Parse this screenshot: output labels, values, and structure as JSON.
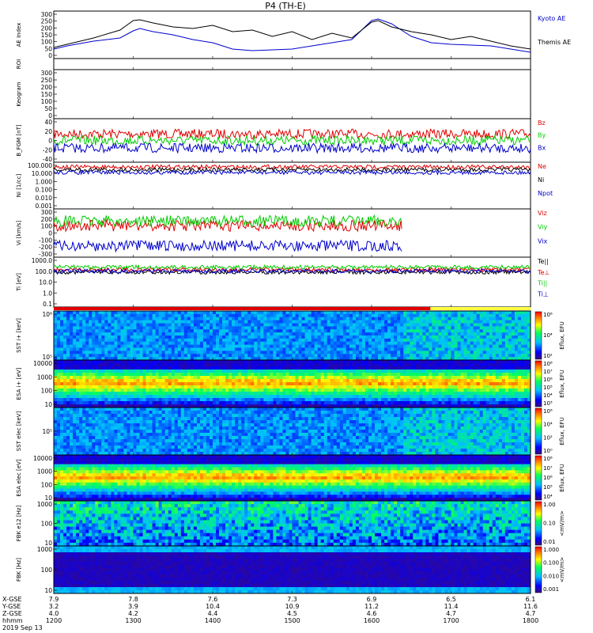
{
  "header": {
    "title": "P4 (TH-E)"
  },
  "chart_data": {
    "type": "line",
    "x_axis": {
      "rows": [
        {
          "label": "X-GSE",
          "values": [
            "7.9",
            "7.8",
            "7.6",
            "7.3",
            "6.9",
            "6.5",
            "6.1"
          ]
        },
        {
          "label": "Y-GSE",
          "values": [
            "3.2",
            "3.9",
            "10.4",
            "10.9",
            "11.2",
            "11.4",
            "11.6"
          ]
        },
        {
          "label": "Z-GSE",
          "values": [
            "4.0",
            "4.2",
            "4.4",
            "4.5",
            "4.6",
            "4.7",
            "4.7"
          ]
        },
        {
          "label": "hhmm",
          "values": [
            "1200",
            "1300",
            "1400",
            "1500",
            "1600",
            "1700",
            "1800"
          ]
        }
      ],
      "date": "2019 Sep 13",
      "time_range": [
        1200,
        1800
      ]
    },
    "panels": [
      {
        "id": "ae",
        "ylabel": "AE Index",
        "ylim": [
          0,
          300
        ],
        "ticks": [
          "300",
          "250",
          "200",
          "150",
          "100",
          "50",
          "0"
        ],
        "series": [
          {
            "name": "Kyoto AE",
            "color": "#0000cc",
            "x": [
              1200,
              1210,
              1230,
              1250,
              1300,
              1305,
              1315,
              1330,
              1345,
              1400,
              1415,
              1430,
              1445,
              1500,
              1515,
              1530,
              1545,
              1600,
              1605,
              1615,
              1630,
              1645,
              1700,
              1715,
              1730,
              1745,
              1800
            ],
            "y": [
              60,
              80,
              110,
              130,
              175,
              190,
              170,
              150,
              120,
              100,
              60,
              50,
              55,
              60,
              80,
              100,
              120,
              240,
              250,
              220,
              140,
              100,
              90,
              85,
              80,
              60,
              40
            ]
          },
          {
            "name": "Themis AE",
            "color": "#000000",
            "x": [
              1200,
              1210,
              1230,
              1250,
              1300,
              1305,
              1315,
              1330,
              1345,
              1400,
              1415,
              1430,
              1445,
              1500,
              1515,
              1530,
              1545,
              1600,
              1605,
              1615,
              1630,
              1645,
              1700,
              1715,
              1730,
              1745,
              1800
            ],
            "y": [
              70,
              90,
              130,
              180,
              240,
              245,
              225,
              200,
              190,
              210,
              170,
              180,
              140,
              170,
              120,
              160,
              130,
              230,
              240,
              200,
              170,
              150,
              120,
              140,
              110,
              80,
              60
            ]
          }
        ]
      },
      {
        "id": "roi",
        "ylabel": "ROI"
      },
      {
        "id": "keogram",
        "ylabel": "Keogram",
        "ylim": [
          0,
          300
        ],
        "ticks": [
          "300",
          "250",
          "200",
          "150",
          "100",
          "50",
          "0"
        ]
      },
      {
        "id": "bfgm",
        "ylabel": "B_FGM [nT]",
        "ylim": [
          -40,
          40
        ],
        "ticks": [
          "40",
          "20",
          "0",
          "-20",
          "-40"
        ],
        "series": [
          {
            "name": "Bz",
            "color": "#e00000",
            "level": 12
          },
          {
            "name": "By",
            "color": "#00cc00",
            "level": 0
          },
          {
            "name": "Bx",
            "color": "#0000cc",
            "level": -14
          }
        ]
      },
      {
        "id": "ni",
        "ylabel": "Ni [1/cc]",
        "ticks": [
          "100.000",
          "10.000",
          "1.000",
          "0.100",
          "0.010",
          "0.001"
        ],
        "series": [
          {
            "name": "Ne",
            "color": "#e00000"
          },
          {
            "name": "Ni",
            "color": "#000000"
          },
          {
            "name": "Npot",
            "color": "#0000cc"
          }
        ]
      },
      {
        "id": "vi",
        "ylabel": "Vi [km/s]",
        "ylim": [
          -300,
          300
        ],
        "ticks": [
          "300",
          "200",
          "100",
          "0",
          "-100",
          "-200",
          "-300"
        ],
        "series": [
          {
            "name": "Viz",
            "color": "#e00000",
            "level": 90
          },
          {
            "name": "Viy",
            "color": "#00cc00",
            "level": 150
          },
          {
            "name": "Vix",
            "color": "#0000cc",
            "level": -160
          }
        ]
      },
      {
        "id": "ti",
        "ylabel": "Ti [eV]",
        "ticks": [
          "1000.0",
          "100.0",
          "10.0",
          "1.0",
          "0.1"
        ],
        "series": [
          {
            "name": "Te||",
            "color": "#000000"
          },
          {
            "name": "Te⊥",
            "color": "#e00000"
          },
          {
            "name": "Ti||",
            "color": "#00cc00"
          },
          {
            "name": "Ti⊥",
            "color": "#0000cc"
          }
        ]
      },
      {
        "id": "sst_i",
        "ylabel": "SST i+ [keV]",
        "ticks": [
          "10⁶",
          "10⁵"
        ],
        "colorbar": {
          "label": "Eflux, EFU",
          "ticks": [
            "10⁶",
            "10⁴",
            "10²"
          ]
        }
      },
      {
        "id": "esa_i",
        "ylabel": "ESA i+ [eV]",
        "ticks": [
          "10000",
          "1000",
          "100",
          "10"
        ],
        "colorbar": {
          "label": "Eflux, EFU",
          "ticks": [
            "10⁸",
            "10⁷",
            "10⁶",
            "10⁵",
            "10⁴",
            "10³"
          ]
        }
      },
      {
        "id": "sst_e",
        "ylabel": "SST elec [keV]",
        "ticks": [
          "10⁵"
        ],
        "colorbar": {
          "label": "Eflux, EFU",
          "ticks": [
            "10⁶",
            "10⁴",
            "10²",
            "10⁰"
          ]
        }
      },
      {
        "id": "esa_e",
        "ylabel": "ESA elec [eV]",
        "ticks": [
          "10000",
          "1000",
          "100",
          "10"
        ],
        "colorbar": {
          "label": "Eflux, EFU",
          "ticks": [
            "10⁸",
            "10⁷",
            "10⁶",
            "10⁵",
            "10⁴"
          ]
        }
      },
      {
        "id": "fbk_e12",
        "ylabel": "FBK e12 [Hz]",
        "ticks": [
          "1000",
          "100",
          "10"
        ],
        "colorbar": {
          "label": "<mV/m>",
          "ticks": [
            "1.00",
            "0.10",
            "0.01"
          ]
        }
      },
      {
        "id": "fbk_b",
        "ylabel": "FBK [Hz]",
        "ticks": [
          "1000",
          "100",
          "10"
        ],
        "colorbar": {
          "label": "<mV/m>",
          "ticks": [
            "1.000",
            "0.100",
            "0.010",
            "0.001"
          ]
        }
      }
    ]
  }
}
